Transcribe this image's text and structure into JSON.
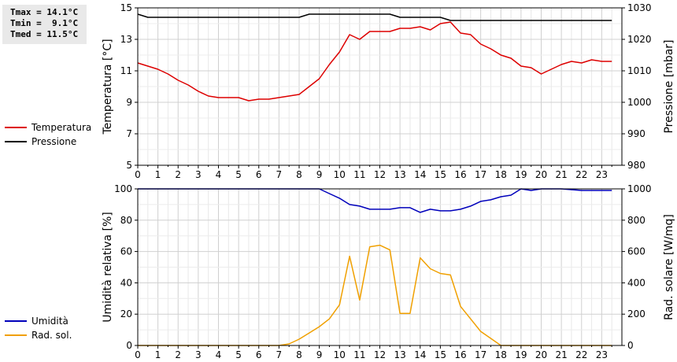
{
  "stats": {
    "tmax": "Tmax = 14.1°C",
    "tmin": "Tmin =  9.1°C",
    "tmed": "Tmed = 11.5°C"
  },
  "colors": {
    "temperature": "#dd0000",
    "pressure": "#000000",
    "humidity": "#0000bb",
    "solar": "#f0a000",
    "grid": "#d0d0d0"
  },
  "chart_data": [
    {
      "type": "line",
      "ylabel_left": "Temperatura [°C]",
      "ylabel_right": "Pressione [mbar]",
      "xlim": [
        0,
        24
      ],
      "ylim_left": [
        5,
        15
      ],
      "ylim_right": [
        980,
        1030
      ],
      "x_ticks": [
        "0",
        "1",
        "2",
        "3",
        "4",
        "5",
        "6",
        "7",
        "8",
        "9",
        "10",
        "11",
        "12",
        "13",
        "14",
        "15",
        "16",
        "17",
        "18",
        "19",
        "20",
        "21",
        "22",
        "23"
      ],
      "y_ticks_left": [
        "5",
        "7",
        "9",
        "11",
        "13",
        "15"
      ],
      "y_ticks_right": [
        "980",
        "990",
        "1000",
        "1010",
        "1020",
        "1030"
      ],
      "grid": true,
      "legend": [
        "Temperatura",
        "Pressione"
      ],
      "series": [
        {
          "name": "Temperatura",
          "axis": "left",
          "x": [
            0,
            0.5,
            1,
            1.5,
            2,
            2.5,
            3,
            3.5,
            4,
            4.5,
            5,
            5.5,
            6,
            6.5,
            7,
            7.5,
            8,
            8.5,
            9,
            9.5,
            10,
            10.5,
            11,
            11.5,
            12,
            12.5,
            13,
            13.5,
            14,
            14.5,
            15,
            15.5,
            16,
            16.5,
            17,
            17.5,
            18,
            18.5,
            19,
            19.5,
            20,
            20.5,
            21,
            21.5,
            22,
            22.5,
            23,
            23.5
          ],
          "values": [
            11.5,
            11.3,
            11.1,
            10.8,
            10.4,
            10.1,
            9.7,
            9.4,
            9.3,
            9.3,
            9.3,
            9.1,
            9.2,
            9.2,
            9.3,
            9.4,
            9.5,
            10.0,
            10.5,
            11.4,
            12.2,
            13.3,
            13.0,
            13.5,
            13.5,
            13.5,
            13.7,
            13.7,
            13.8,
            13.6,
            14.0,
            14.1,
            13.4,
            13.3,
            12.7,
            12.4,
            12.0,
            11.8,
            11.3,
            11.2,
            10.8,
            11.1,
            11.4,
            11.6,
            11.5,
            11.7,
            11.6,
            11.6
          ]
        },
        {
          "name": "Pressione",
          "axis": "right",
          "x": [
            0,
            0.5,
            1,
            2,
            3,
            4,
            5,
            6,
            7,
            8,
            8.5,
            9,
            10,
            11,
            12,
            12.5,
            13,
            14,
            15,
            15.5,
            16,
            17,
            18,
            19,
            20,
            21,
            22,
            23,
            23.5
          ],
          "values": [
            1028,
            1027,
            1027,
            1027,
            1027,
            1027,
            1027,
            1027,
            1027,
            1027,
            1028,
            1028,
            1028,
            1028,
            1028,
            1028,
            1027,
            1027,
            1027,
            1026,
            1026,
            1026,
            1026,
            1026,
            1026,
            1026,
            1026,
            1026,
            1026
          ]
        }
      ]
    },
    {
      "type": "line",
      "ylabel_left": "Umidità relativa [%]",
      "ylabel_right": "Rad. solare [W/mq]",
      "xlim": [
        0,
        24
      ],
      "ylim_left": [
        0,
        100
      ],
      "ylim_right": [
        0,
        1000
      ],
      "x_ticks": [
        "0",
        "1",
        "2",
        "3",
        "4",
        "5",
        "6",
        "7",
        "8",
        "9",
        "10",
        "11",
        "12",
        "13",
        "14",
        "15",
        "16",
        "17",
        "18",
        "19",
        "20",
        "21",
        "22",
        "23"
      ],
      "y_ticks_left": [
        "0",
        "20",
        "40",
        "60",
        "80",
        "100"
      ],
      "y_ticks_right": [
        "0",
        "200",
        "400",
        "600",
        "800",
        "1000"
      ],
      "grid": true,
      "legend": [
        "Umidità",
        "Rad. sol."
      ],
      "series": [
        {
          "name": "Umidità",
          "axis": "left",
          "x": [
            0,
            1,
            2,
            3,
            4,
            5,
            6,
            7,
            8,
            9,
            9.5,
            10,
            10.5,
            11,
            11.5,
            12,
            12.5,
            13,
            13.5,
            14,
            14.5,
            15,
            15.5,
            16,
            16.5,
            17,
            17.5,
            18,
            18.5,
            19,
            19.5,
            20,
            21,
            22,
            23,
            23.5
          ],
          "values": [
            100,
            100,
            100,
            100,
            100,
            100,
            100,
            100,
            100,
            100,
            97,
            94,
            90,
            89,
            87,
            87,
            87,
            88,
            88,
            85,
            87,
            86,
            86,
            87,
            89,
            92,
            93,
            95,
            96,
            100,
            99,
            100,
            100,
            99,
            99,
            99
          ]
        },
        {
          "name": "Rad. sol.",
          "axis": "right",
          "x": [
            0,
            1,
            2,
            3,
            4,
            5,
            6,
            7,
            7.5,
            8,
            8.5,
            9,
            9.5,
            10,
            10.5,
            11,
            11.5,
            12,
            12.5,
            13,
            13.5,
            14,
            14.5,
            15,
            15.5,
            16,
            16.5,
            17,
            17.5,
            18,
            19,
            20,
            21,
            22,
            23,
            23.5
          ],
          "values": [
            0,
            0,
            0,
            0,
            0,
            0,
            0,
            0,
            10,
            40,
            80,
            120,
            170,
            260,
            570,
            290,
            630,
            640,
            610,
            205,
            205,
            560,
            490,
            460,
            450,
            250,
            170,
            90,
            45,
            0,
            0,
            0,
            0,
            0,
            0,
            0
          ]
        }
      ]
    }
  ]
}
